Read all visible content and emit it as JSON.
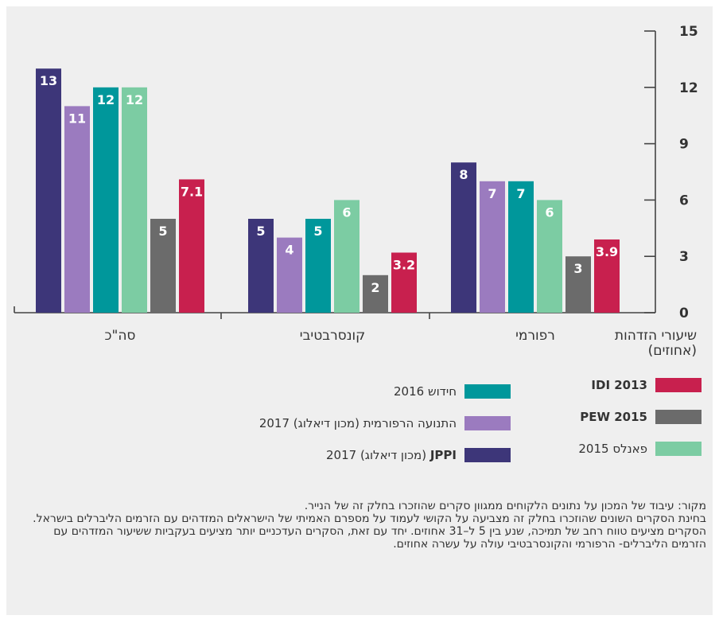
{
  "chart_data": {
    "type": "bar",
    "categories": [
      "סה\"כ",
      "קונסרבטיבי",
      "רפורמי"
    ],
    "ylim": [
      0,
      15
    ],
    "yticks": [
      0,
      3,
      6,
      9,
      12,
      15
    ],
    "axis_position": "right",
    "ylabel_line1": "שיעורי הזדהות",
    "ylabel_line2": "(אחוזים)",
    "series": [
      {
        "name": "JPPI (מכון דיאלוג) 2017",
        "color": "#3d3679",
        "values": [
          13,
          5,
          8
        ],
        "labels": [
          "13",
          "5",
          "8"
        ]
      },
      {
        "name": "התנועה הרפורמית (מכון דיאלוג) 2017",
        "color": "#9b7bbf",
        "values": [
          11,
          4,
          7
        ],
        "labels": [
          "11",
          "4",
          "7"
        ]
      },
      {
        "name": "חידוש 2016",
        "color": "#00979b",
        "values": [
          12,
          5,
          7
        ],
        "labels": [
          "12",
          "5",
          "7"
        ]
      },
      {
        "name": "פאנלס 2015",
        "color": "#7ccca3",
        "values": [
          12,
          6,
          6
        ],
        "labels": [
          "12",
          "6",
          "6"
        ]
      },
      {
        "name": "PEW 2015",
        "color": "#6b6b6b",
        "values": [
          5,
          2,
          3
        ],
        "labels": [
          "5",
          "2",
          "3"
        ]
      },
      {
        "name": "IDI 2013",
        "color": "#c8204e",
        "values": [
          7.1,
          3.2,
          3.9
        ],
        "labels": [
          "7.1",
          "3.2",
          "3.9"
        ]
      }
    ],
    "legend_placement": "bottom"
  },
  "legend": {
    "idi": {
      "text": "IDI 2013",
      "color": "#c8204e"
    },
    "pew": {
      "text": "PEW 2015",
      "color": "#6b6b6b"
    },
    "panels": {
      "text": "פאנלס 2015",
      "color": "#7ccca3"
    },
    "hiddush": {
      "text": "חידוש 2016",
      "color": "#00979b"
    },
    "reform": {
      "text": "התנועה הרפורמית (מכון דיאלוג) 2017",
      "color": "#9b7bbf"
    },
    "jppi_bold": "JPPI",
    "jppi_rest": " (מכון דיאלוג) 2017",
    "jppi_color": "#3d3679"
  },
  "footnote": {
    "line1": "מקור: עיבוד של המכון על נתונים הלקוחים ממגוון סקרים שהוזכרו בחלק זה של הנייר.",
    "line2": "בחינת הסקרים השונים שהוזכרו בחלק זה מצביעה על הקושי לעמוד על מספרם האמיתי של הישראלים המזדהים עם הזרמים הליברלים בישראל. הסקרים מציעים טווח רחב של תמיכה, שנע בין 5 ל–31 אחוזים. יחד עם זאת, הסקרים העדכניים יותר מציעים בעקביות ששיעור המזדהים עם הזרמים הליברלים- הרפורמי והקונסרבטיבי עולה על עשרה אחוזים."
  }
}
